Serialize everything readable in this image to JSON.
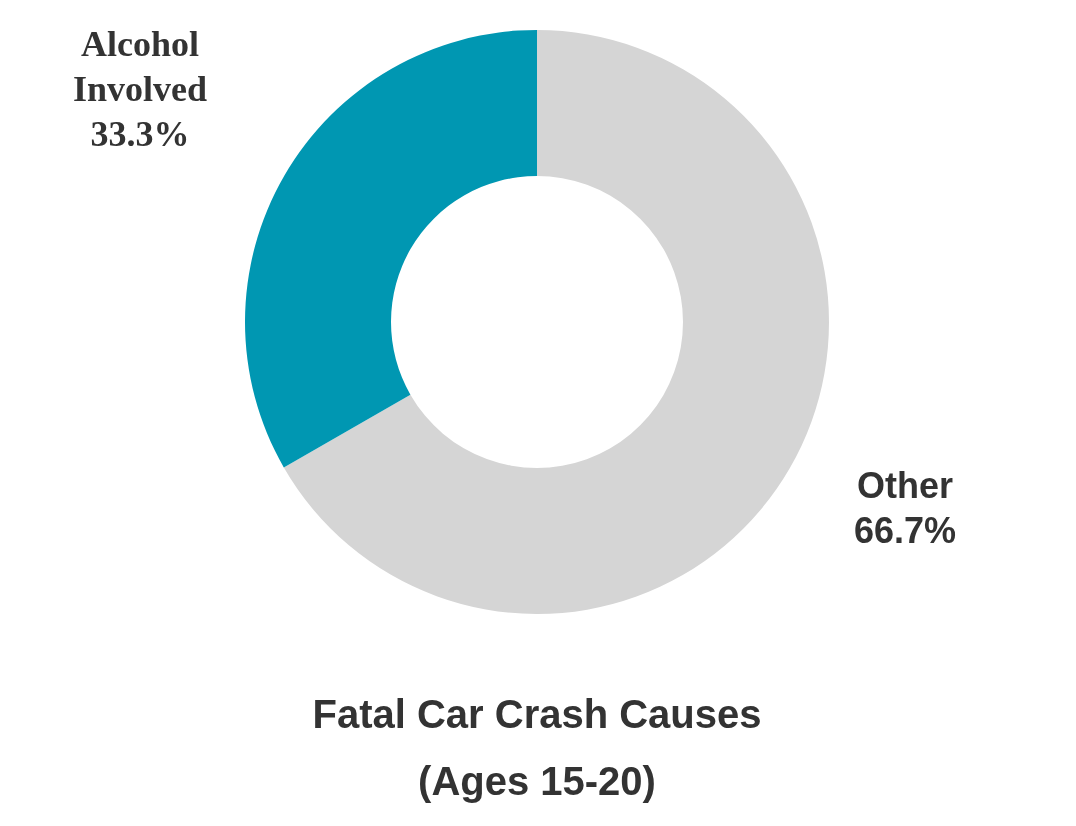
{
  "chart_data": {
    "type": "donut",
    "title": "Fatal Car Crash Causes",
    "subtitle": "(Ages 15-20)",
    "categories": [
      "Other",
      "Alcohol Involved"
    ],
    "values": [
      66.7,
      33.3
    ],
    "colors": [
      "#d5d5d5",
      "#0097b2"
    ],
    "value_labels": [
      "66.7%",
      "33.3%"
    ]
  }
}
